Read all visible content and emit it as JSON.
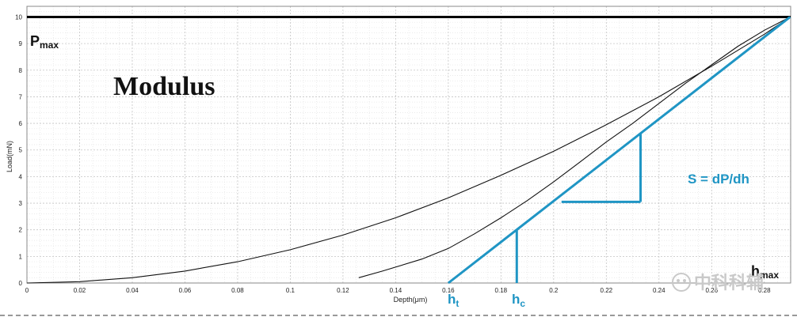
{
  "chart_data": {
    "type": "line",
    "title": "Modulus",
    "xlabel": "Depth(μm)",
    "ylabel": "Load(mN)",
    "xlim": [
      0,
      0.29
    ],
    "ylim": [
      0,
      10.4
    ],
    "grid": true,
    "x_ticks": [
      "0",
      "0.02",
      "0.04",
      "0.06",
      "0.08",
      "0.1",
      "0.12",
      "0.14",
      "0.16",
      "0.18",
      "0.2",
      "0.22",
      "0.24",
      "0.26",
      "0.28"
    ],
    "y_ticks": [
      "0",
      "1",
      "2",
      "3",
      "4",
      "5",
      "6",
      "7",
      "8",
      "9",
      "10"
    ],
    "series": [
      {
        "points": [
          [
            0,
            0
          ],
          [
            0.02,
            0.05
          ],
          [
            0.04,
            0.2
          ],
          [
            0.06,
            0.45
          ],
          [
            0.08,
            0.8
          ],
          [
            0.1,
            1.25
          ],
          [
            0.12,
            1.8
          ],
          [
            0.14,
            2.45
          ],
          [
            0.16,
            3.2
          ],
          [
            0.18,
            4.05
          ],
          [
            0.2,
            4.95
          ],
          [
            0.22,
            5.95
          ],
          [
            0.24,
            7.0
          ],
          [
            0.26,
            8.15
          ],
          [
            0.28,
            9.35
          ],
          [
            0.2898,
            10
          ]
        ]
      },
      {
        "points": [
          [
            0.126,
            0.2
          ],
          [
            0.135,
            0.45
          ],
          [
            0.15,
            0.9
          ],
          [
            0.16,
            1.3
          ],
          [
            0.17,
            1.85
          ],
          [
            0.18,
            2.45
          ],
          [
            0.19,
            3.1
          ],
          [
            0.2,
            3.8
          ],
          [
            0.21,
            4.55
          ],
          [
            0.22,
            5.3
          ],
          [
            0.23,
            6.0
          ],
          [
            0.24,
            6.75
          ],
          [
            0.25,
            7.5
          ],
          [
            0.26,
            8.2
          ],
          [
            0.27,
            8.9
          ],
          [
            0.28,
            9.5
          ],
          [
            0.2898,
            10
          ]
        ]
      }
    ],
    "annotations": {
      "pmax": {
        "label": "P",
        "sub": "max",
        "value": 10
      },
      "hmax": {
        "label": "h",
        "sub": "max",
        "x": 0.2898
      },
      "ht": {
        "label": "h",
        "sub": "t",
        "x": 0.16
      },
      "hc": {
        "label": "h",
        "sub": "c",
        "x": 0.186
      },
      "slope_label": "S = dP/dh",
      "tangent": {
        "x1": 0.16,
        "y1": 0,
        "x2": 0.2898,
        "y2": 10
      },
      "triangle": {
        "x_left": 0.203,
        "x_right": 0.233,
        "y_bottom": 3.05,
        "y_top": 5.6
      }
    },
    "colors": {
      "curve": "#111111",
      "tangent": "#1f95c4",
      "pmax_line": "#000000"
    },
    "watermark": "中科科辅"
  }
}
